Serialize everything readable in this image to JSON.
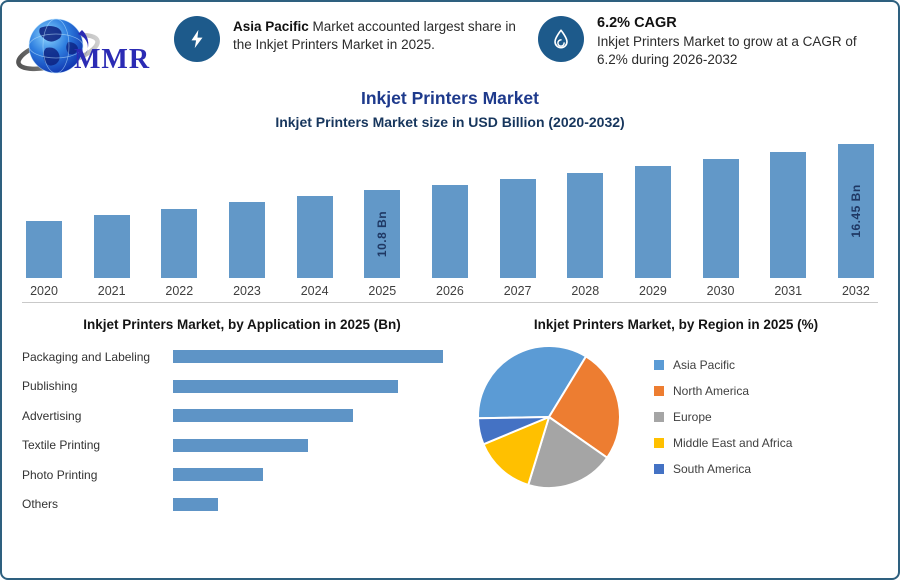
{
  "frame": {
    "border_color": "#2e607f",
    "background": "#ffffff"
  },
  "logo": {
    "text": "MMR",
    "text_color": "#2b2bb4",
    "icon": "globe-icon"
  },
  "callouts": [
    {
      "icon": "lightning-icon",
      "circle_color": "#1d5a8b",
      "highlight": "Asia Pacific",
      "rest": " Market accounted largest share in the Inkjet Printers Market in 2025."
    },
    {
      "icon": "ink-drop-icon",
      "circle_color": "#1d5a8b",
      "heading": "6.2% CAGR",
      "body": "Inkjet Printers Market to grow at a CAGR of 6.2% during 2026-2032"
    }
  ],
  "title": {
    "main": "Inkjet Printers Market",
    "subtitle": "Inkjet Printers Market size in USD Billion (2020-2032)"
  },
  "chart_data": [
    {
      "type": "bar",
      "orientation": "vertical",
      "title": "Inkjet Printers Market size in USD Billion (2020-2032)",
      "categories": [
        "2020",
        "2021",
        "2022",
        "2023",
        "2024",
        "2025",
        "2026",
        "2027",
        "2028",
        "2029",
        "2030",
        "2031",
        "2032"
      ],
      "values": [
        7.0,
        7.7,
        8.5,
        9.3,
        10.05,
        10.8,
        11.47,
        12.18,
        12.93,
        13.74,
        14.59,
        15.49,
        16.45
      ],
      "bar_labels": {
        "2025": "10.8 Bn",
        "2032": "16.45 Bn"
      },
      "bar_color": "#6298c8",
      "label_color": "#1f3864",
      "xlabel": "",
      "ylabel": "USD Billion",
      "ylim": [
        0,
        17
      ],
      "grid": false,
      "legend": false
    },
    {
      "type": "bar",
      "orientation": "horizontal",
      "title": "Inkjet Printers Market, by Application in 2025 (Bn)",
      "categories": [
        "Packaging and Labeling",
        "Publishing",
        "Advertising",
        "Textile Printing",
        "Photo Printing",
        "Others"
      ],
      "values": [
        3.0,
        2.5,
        2.0,
        1.5,
        1.0,
        0.5
      ],
      "bar_color": "#5e94c6",
      "xlabel": "Bn",
      "ylabel": "",
      "xlim": [
        0,
        3.1
      ],
      "grid": false,
      "legend": false
    },
    {
      "type": "pie",
      "title": "Inkjet Printers Market, by Region in 2025 (%)",
      "labels": [
        "Asia Pacific",
        "North America",
        "Europe",
        "Middle East and Africa",
        "South America"
      ],
      "values": [
        34,
        26,
        20,
        14,
        6
      ],
      "colors": [
        "#5b9bd5",
        "#ed7d31",
        "#a5a5a5",
        "#ffc000",
        "#4472c4"
      ],
      "start_angle_deg": -91,
      "legend_position": "right"
    }
  ]
}
